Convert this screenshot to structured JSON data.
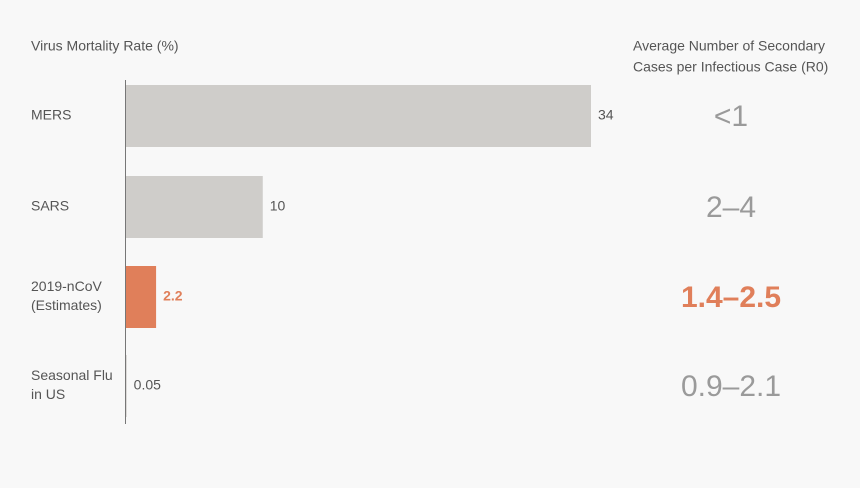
{
  "chart_data": {
    "type": "hbar",
    "title": "Virus Mortality Rate (%)",
    "categories": [
      [
        "MERS"
      ],
      [
        "SARS"
      ],
      [
        "2019-nCoV",
        "(Estimates)"
      ],
      [
        "Seasonal Flu",
        "in US"
      ]
    ],
    "values": [
      34,
      10,
      2.2,
      0.05
    ],
    "colors": [
      "#cfcdca",
      "#cfcdca",
      "#e07f5a",
      "#cfcdca"
    ],
    "label_colors": [
      "#555555",
      "#555555",
      "#e07f5a",
      "#555555"
    ],
    "highlight": 2,
    "r0_title": [
      "Average Number of Secondary",
      "Cases per Infectious Case (R0)"
    ],
    "r0_values": [
      "<1",
      "2–4",
      "1.4–2.5",
      "0.9–2.1"
    ],
    "r0_colors": [
      "#9a9a9a",
      "#9a9a9a",
      "#e07f5a",
      "#9a9a9a"
    ]
  }
}
